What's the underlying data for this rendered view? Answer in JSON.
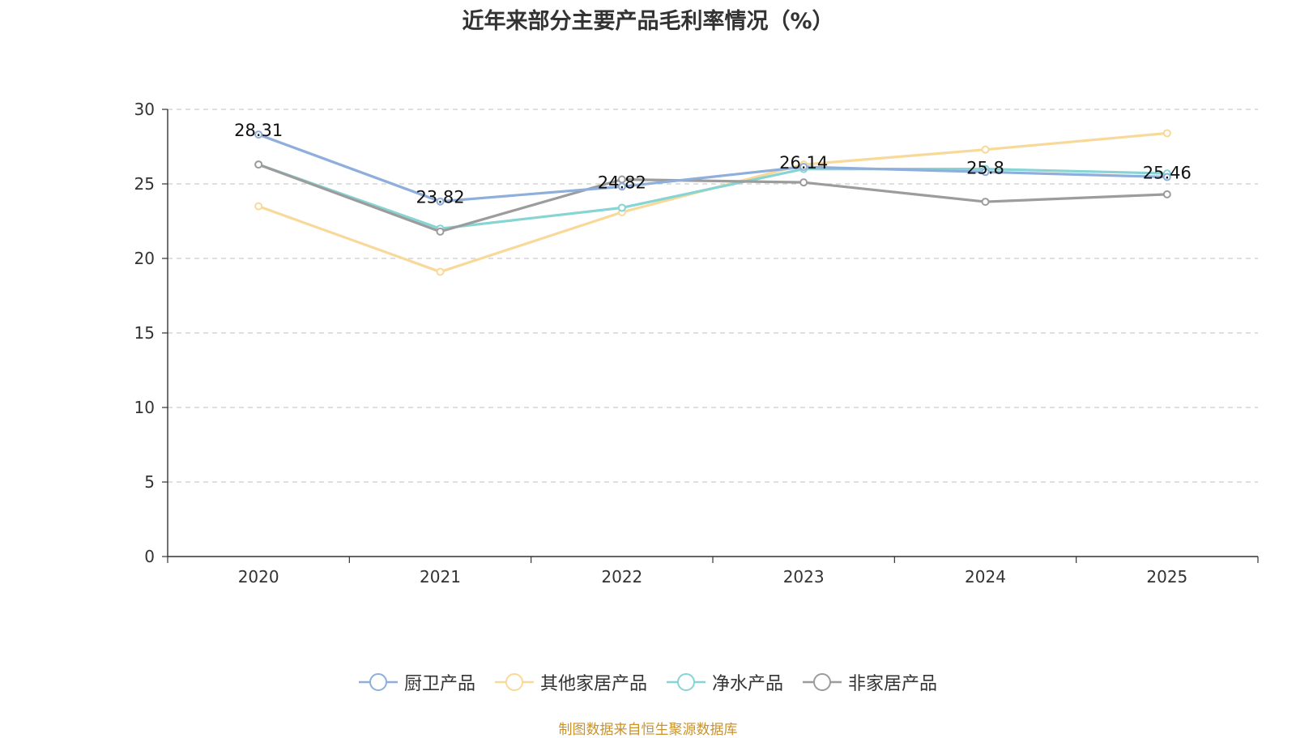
{
  "chart_data": {
    "type": "line",
    "title": "近年来部分主要产品毛利率情况（%）",
    "categories": [
      "2020",
      "2021",
      "2022",
      "2023",
      "2024",
      "2025"
    ],
    "ylim": [
      0,
      30
    ],
    "yticks": [
      0,
      5,
      10,
      15,
      20,
      25,
      30
    ],
    "grid": true,
    "legend_position": "bottom",
    "series": [
      {
        "name": "厨卫产品",
        "color": "#8eaedb",
        "values": [
          28.31,
          23.82,
          24.82,
          26.14,
          25.8,
          25.46
        ],
        "show_labels": true
      },
      {
        "name": "其他家居产品",
        "color": "#f8d99a",
        "values": [
          23.5,
          19.1,
          23.1,
          26.3,
          27.3,
          28.4
        ],
        "show_labels": false
      },
      {
        "name": "净水产品",
        "color": "#86d4d4",
        "values": [
          26.3,
          22.0,
          23.4,
          26.0,
          26.0,
          25.7
        ],
        "show_labels": false
      },
      {
        "name": "非家居产品",
        "color": "#9c9c9c",
        "values": [
          26.3,
          21.8,
          25.3,
          25.1,
          23.8,
          24.3
        ],
        "show_labels": false
      }
    ]
  },
  "source_note": "制图数据来自恒生聚源数据库"
}
